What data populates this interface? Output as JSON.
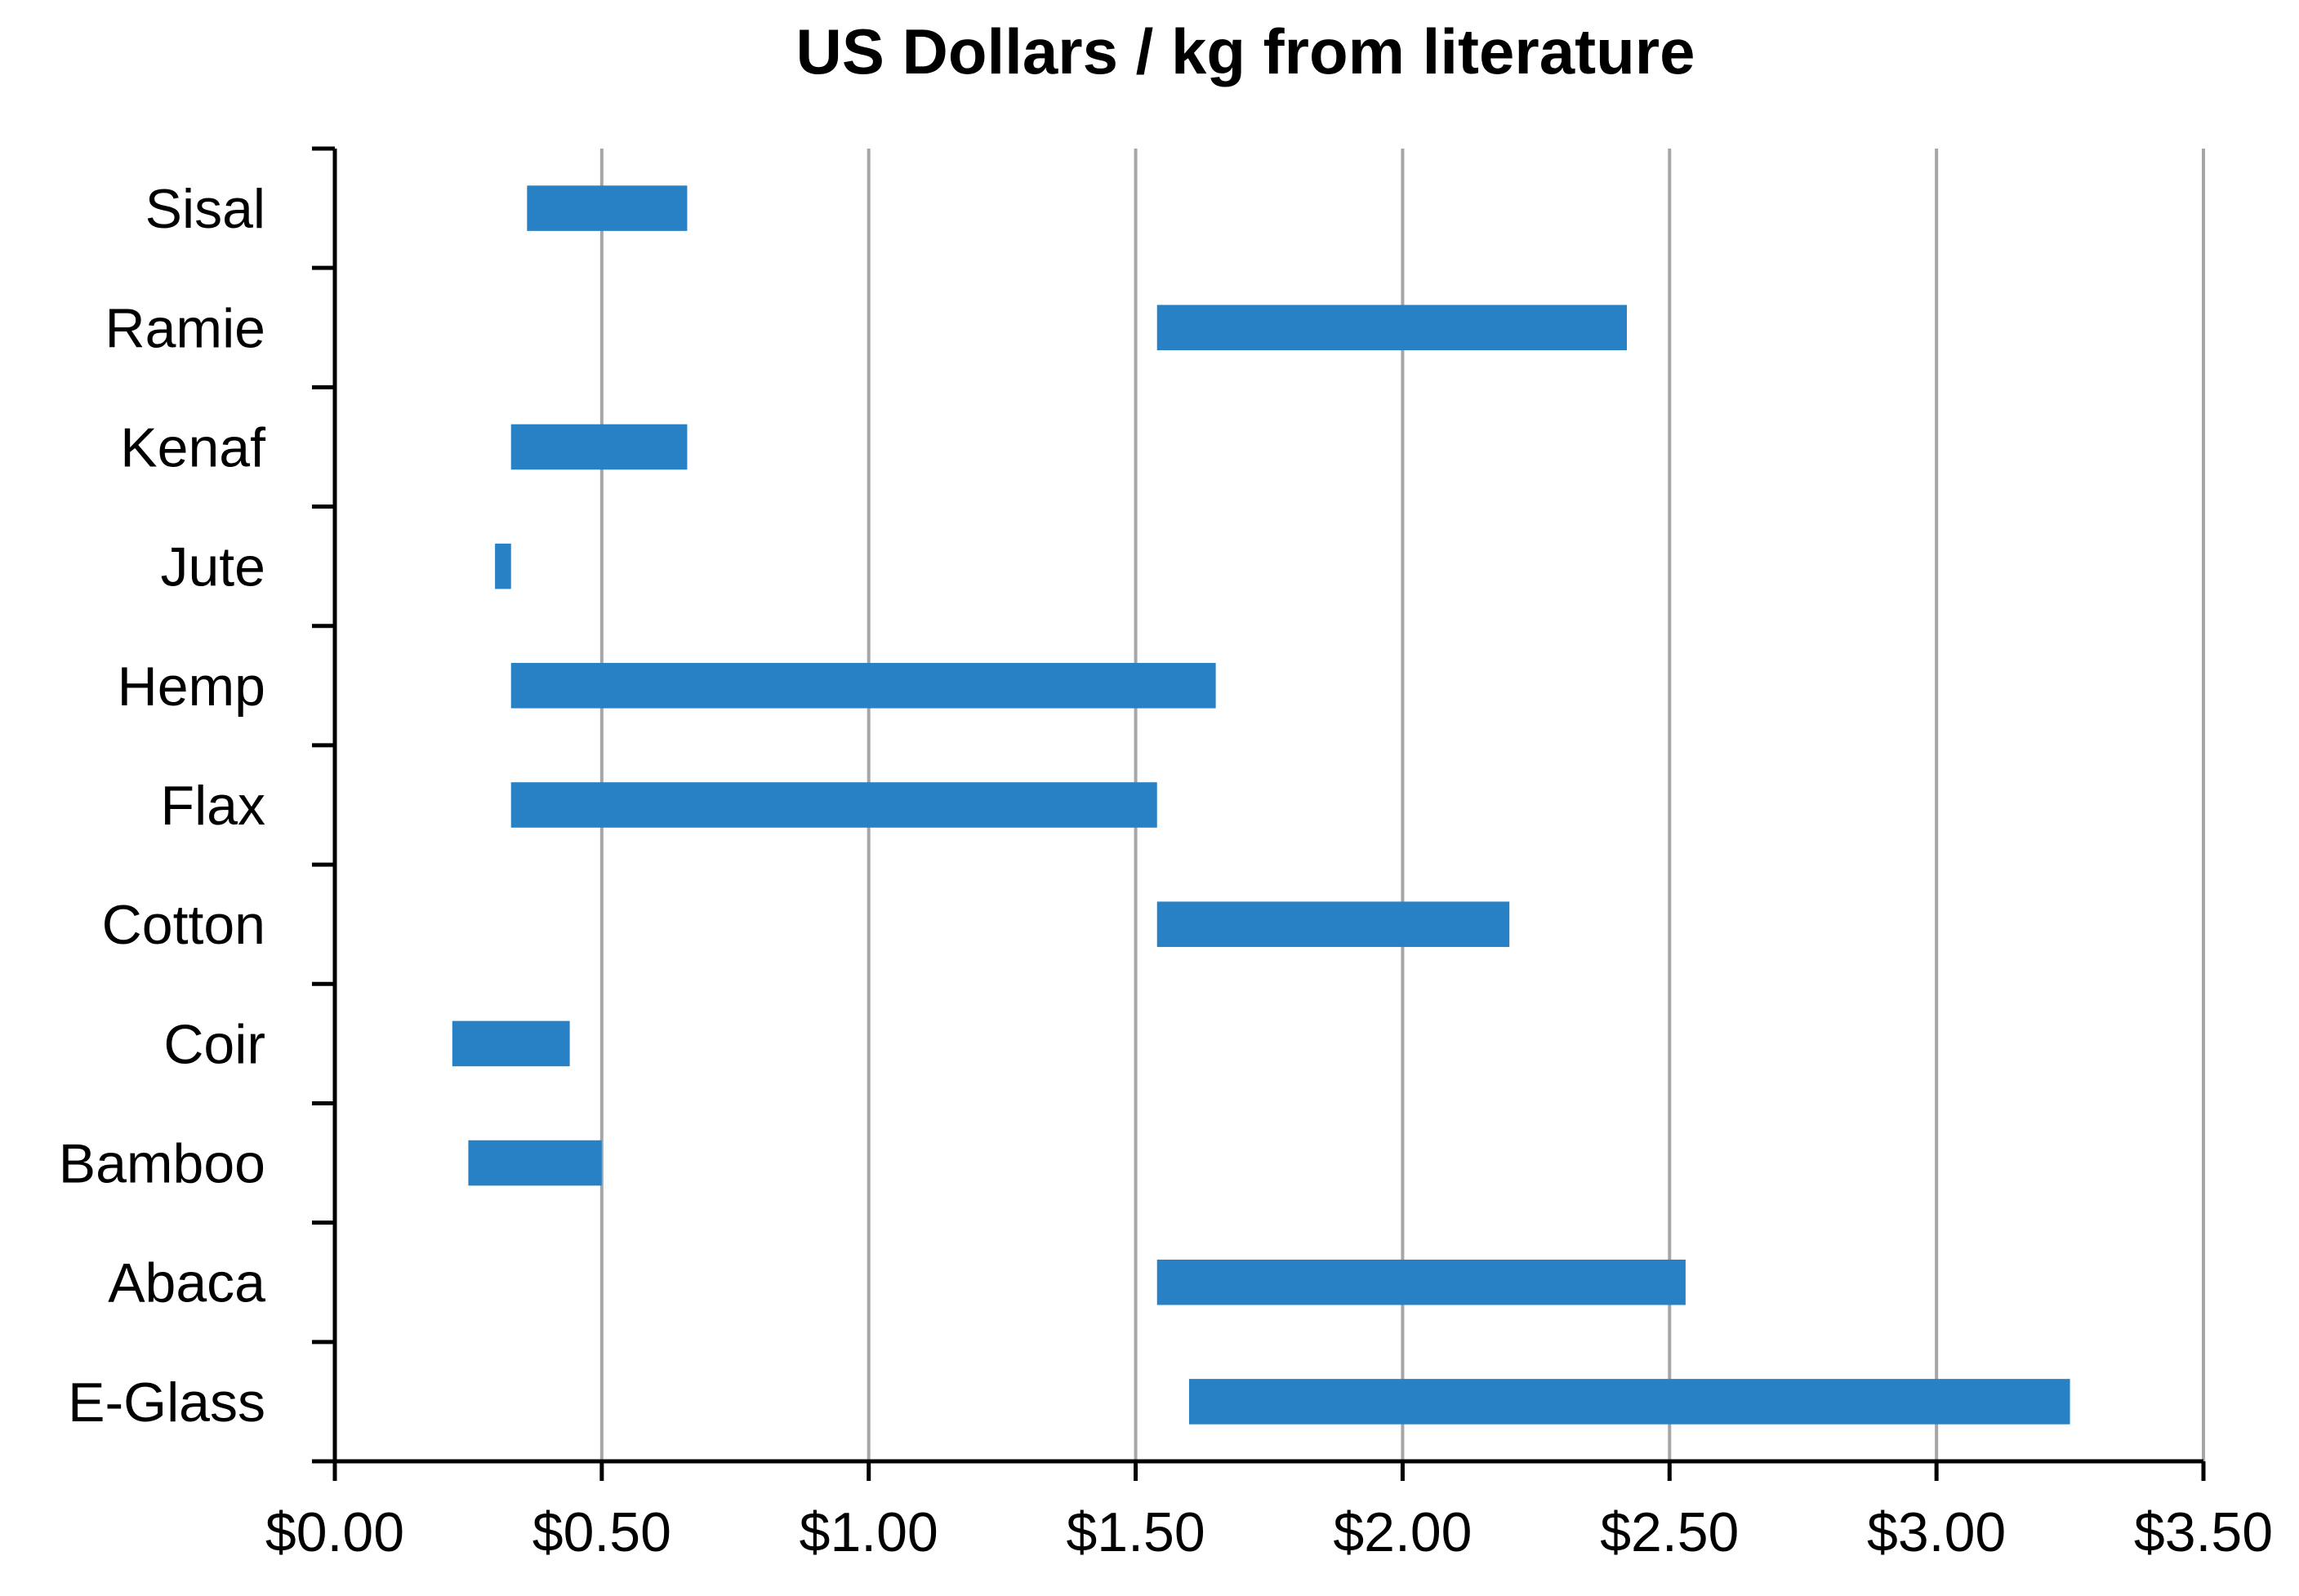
{
  "chart_data": {
    "type": "bar",
    "orientation": "horizontal",
    "title": "US Dollars / kg from literature",
    "xlabel": "",
    "ylabel": "",
    "categories": [
      "Sisal",
      "Ramie",
      "Kenaf",
      "Jute",
      "Hemp",
      "Flax",
      "Cotton",
      "Coir",
      "Bamboo",
      "Abaca",
      "E-Glass"
    ],
    "ranges": [
      {
        "category": "Sisal",
        "min": 0.36,
        "max": 0.66
      },
      {
        "category": "Ramie",
        "min": 1.54,
        "max": 2.42
      },
      {
        "category": "Kenaf",
        "min": 0.33,
        "max": 0.66
      },
      {
        "category": "Jute",
        "min": 0.3,
        "max": 0.33
      },
      {
        "category": "Hemp",
        "min": 0.33,
        "max": 1.65
      },
      {
        "category": "Flax",
        "min": 0.33,
        "max": 1.54
      },
      {
        "category": "Cotton",
        "min": 1.54,
        "max": 2.2
      },
      {
        "category": "Coir",
        "min": 0.22,
        "max": 0.44
      },
      {
        "category": "Bamboo",
        "min": 0.25,
        "max": 0.5
      },
      {
        "category": "Abaca",
        "min": 1.54,
        "max": 2.53
      },
      {
        "category": "E-Glass",
        "min": 1.6,
        "max": 3.25
      }
    ],
    "xlim": [
      0,
      3.5
    ],
    "xticks": [
      0,
      0.5,
      1,
      1.5,
      2,
      2.5,
      3,
      3.5
    ],
    "xtick_labels": [
      "$0.00",
      "$0.50",
      "$1.00",
      "$1.50",
      "$2.00",
      "$2.50",
      "$3.00",
      "$3.50"
    ],
    "grid": "vertical",
    "legend": "none",
    "colors": {
      "bar": "#2781C4",
      "grid": "#a6a6a6",
      "axis": "#000000"
    }
  }
}
